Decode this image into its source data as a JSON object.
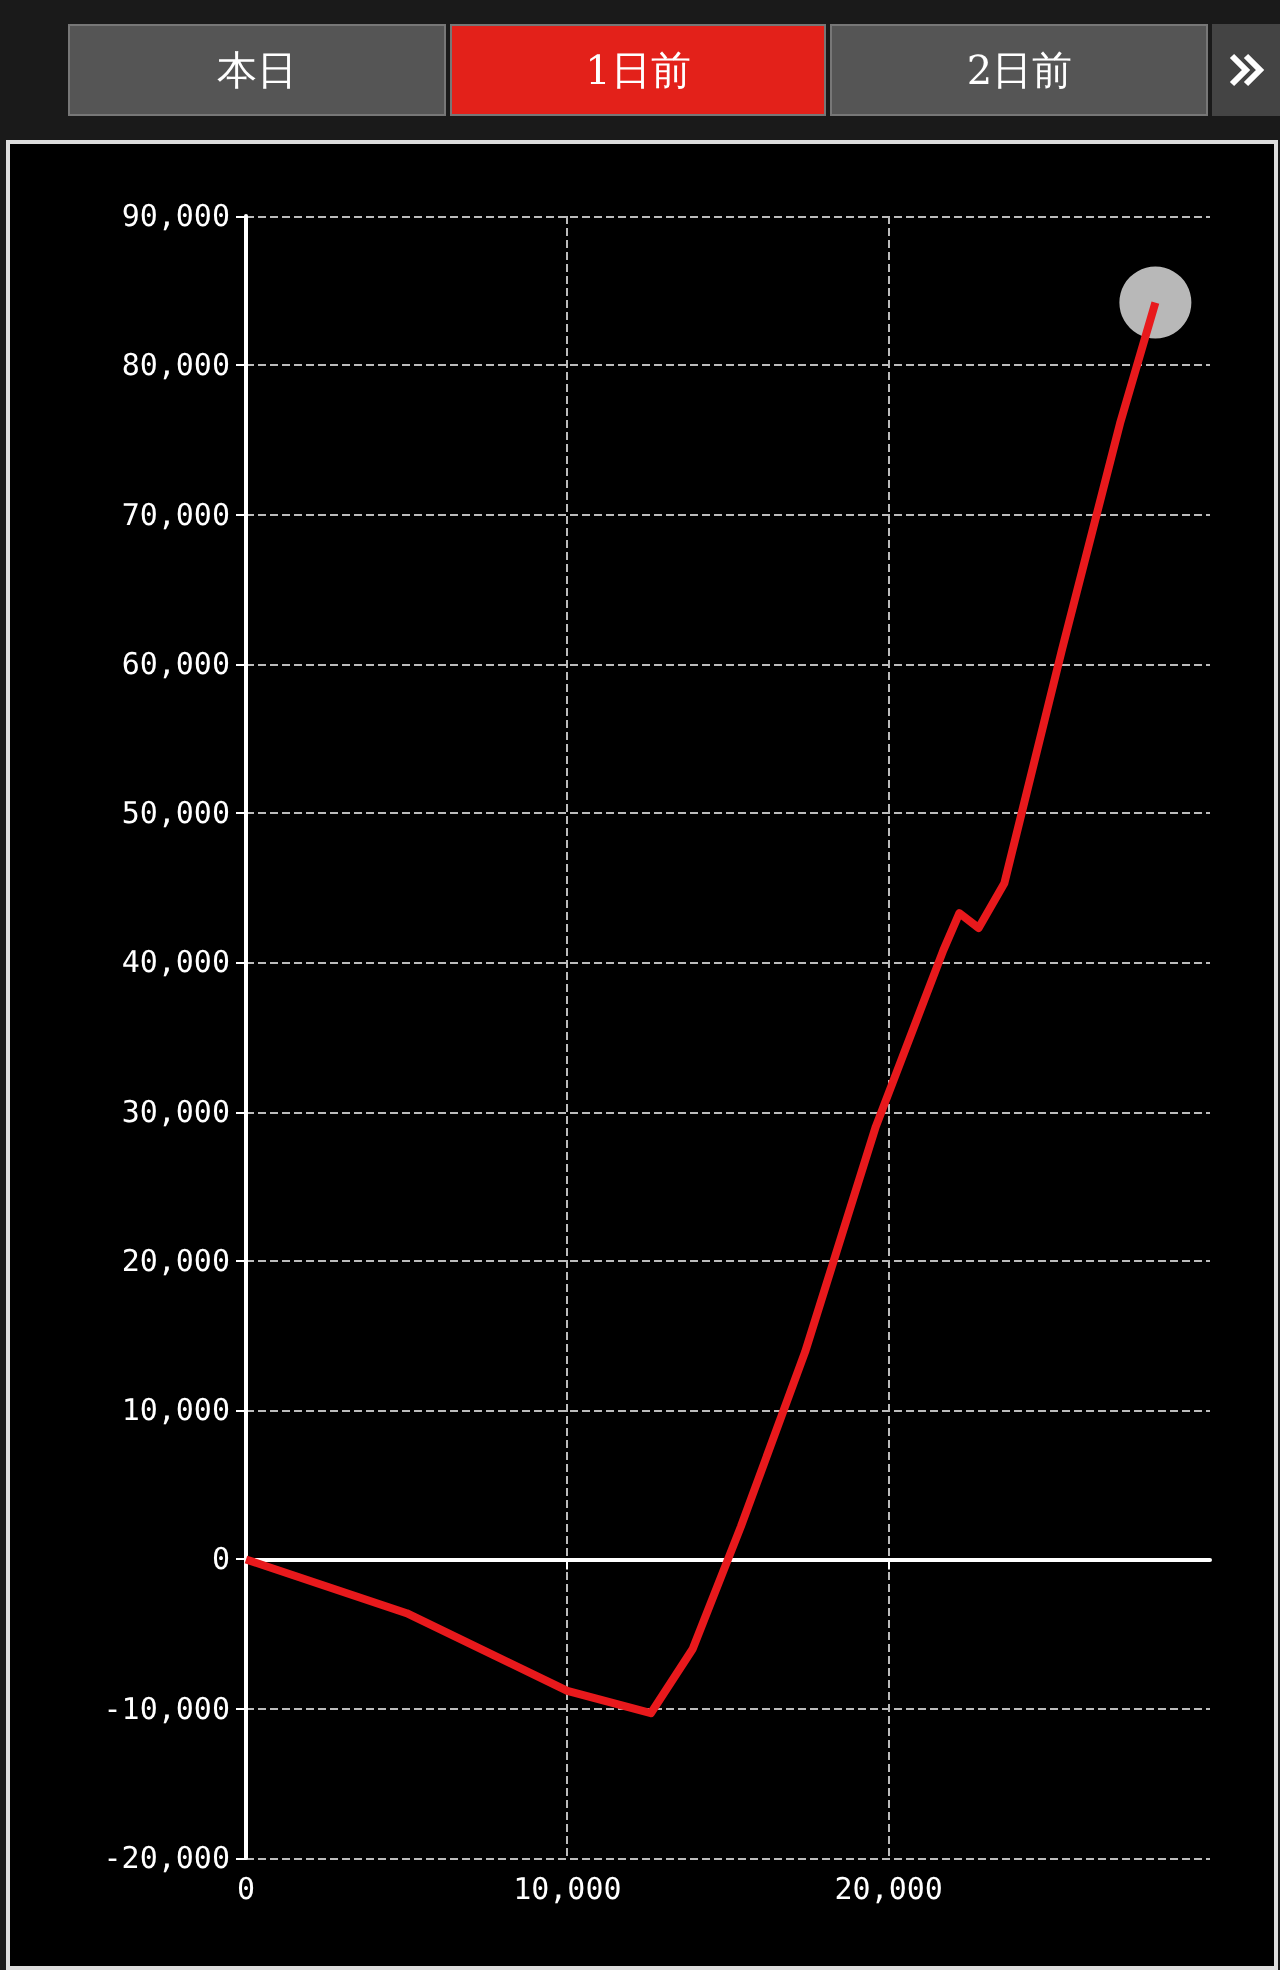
{
  "chart_data": {
    "type": "line",
    "annotations": [
      "本日",
      "1日前",
      "2日前"
    ],
    "x": [
      0,
      5000,
      10000,
      12600,
      13900,
      15400,
      17400,
      19600,
      21700,
      22200,
      22800,
      23600,
      25400,
      27200,
      28300
    ],
    "series": [
      {
        "color": "#e8191c",
        "values": [
          0,
          -3600,
          -8800,
          -10300,
          -6000,
          2200,
          13900,
          29000,
          40800,
          43300,
          42300,
          45300,
          61000,
          76100,
          84200
        ]
      },
      {
        "type": "scatter",
        "color": "#cccccc",
        "marker": "circle",
        "x": [
          28300
        ],
        "values": [
          84200
        ]
      }
    ],
    "xlim": [
      0,
      30000
    ],
    "xticks": [
      0,
      {
        "value": 10000,
        "label": "10,000"
      },
      {
        "value": 20000,
        "label": "20,000"
      }
    ],
    "ylim": [
      -20000,
      90000
    ],
    "yticks": [
      {
        "value": -20000,
        "label": "-20,000"
      },
      {
        "value": -10000,
        "label": "-10,000"
      },
      0,
      {
        "value": 10000,
        "label": "10,000"
      },
      {
        "value": 20000,
        "label": "20,000"
      },
      {
        "value": 30000,
        "label": "30,000"
      },
      {
        "value": 40000,
        "label": "40,000"
      },
      {
        "value": 50000,
        "label": "50,000"
      },
      {
        "value": 60000,
        "label": "60,000"
      },
      {
        "value": 70000,
        "label": "70,000"
      },
      {
        "value": 80000,
        "label": "80,000"
      },
      {
        "value": 90000,
        "label": "90,000"
      }
    ],
    "grid": true,
    "marker": "none",
    "line_style": "solid"
  }
}
